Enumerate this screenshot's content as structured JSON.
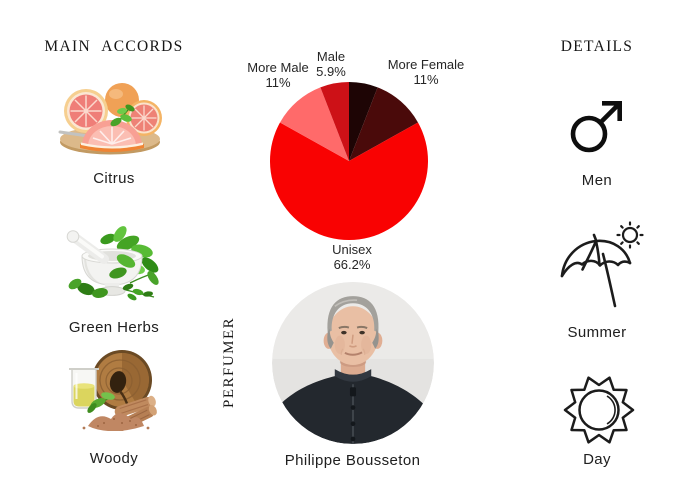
{
  "accords": {
    "heading": "MAIN ACCORDS",
    "items": [
      {
        "label": "Citrus",
        "image": "grapefruit-citrus-image"
      },
      {
        "label": "Green Herbs",
        "image": "mortar-pestle-herbs-image"
      },
      {
        "label": "Woody",
        "image": "wood-sandalwood-oil-image"
      }
    ]
  },
  "chart_data": {
    "type": "pie",
    "unit": "%",
    "order": "clockwise-from-top",
    "slices": [
      {
        "label": "",
        "pct": 5.9,
        "color": "#1e0505"
      },
      {
        "label": "More Female",
        "pct": 11,
        "color": "#4a0a0a"
      },
      {
        "label": "Unisex",
        "pct": 66.2,
        "color": "#f90202"
      },
      {
        "label": "More Male",
        "pct": 11,
        "color": "#ff6a6a"
      },
      {
        "label": "Male",
        "pct": 5.9,
        "color": "#cd1117"
      }
    ],
    "visible_labels": [
      {
        "line1": "More Male",
        "line2": "11%"
      },
      {
        "line1": "Male",
        "line2": "5.9%"
      },
      {
        "line1": "More Female",
        "line2": "11%"
      },
      {
        "line1": "Unisex",
        "line2": "66.2%"
      }
    ]
  },
  "perfumer": {
    "heading_vertical": "PERFUMER",
    "name": "Philippe Bousseton",
    "photo": "philippe-bousseton-portrait"
  },
  "details": {
    "heading": "DETAILS",
    "items": [
      {
        "label": "Men",
        "icon": "mars-icon"
      },
      {
        "label": "Summer",
        "icon": "beach-umbrella-sun-icon"
      },
      {
        "label": "Day",
        "icon": "sun-icon"
      }
    ]
  },
  "colors": {
    "background": "#ffffff",
    "text": "#202020",
    "icon_stroke": "#1c1c1c",
    "unisex_red": "#f90202"
  }
}
